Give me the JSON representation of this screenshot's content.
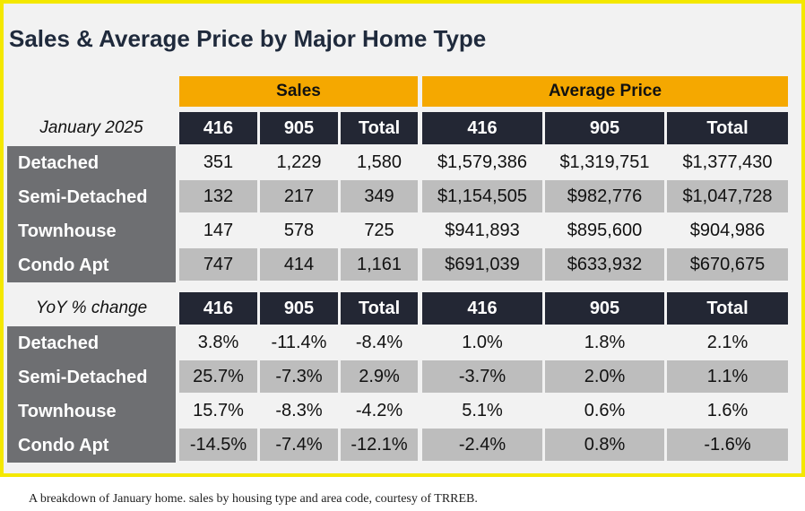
{
  "title": "Sales & Average Price by Major Home Type",
  "groups": {
    "sales": "Sales",
    "avg_price": "Average Price"
  },
  "sections": [
    {
      "caption": "January 2025",
      "columns": [
        "416",
        "905",
        "Total",
        "416",
        "905",
        "Total"
      ],
      "rows": [
        {
          "label": "Detached",
          "values": [
            "351",
            "1,229",
            "1,580",
            "$1,579,386",
            "$1,319,751",
            "$1,377,430"
          ]
        },
        {
          "label": "Semi-Detached",
          "values": [
            "132",
            "217",
            "349",
            "$1,154,505",
            "$982,776",
            "$1,047,728"
          ]
        },
        {
          "label": "Townhouse",
          "values": [
            "147",
            "578",
            "725",
            "$941,893",
            "$895,600",
            "$904,986"
          ]
        },
        {
          "label": "Condo Apt",
          "values": [
            "747",
            "414",
            "1,161",
            "$691,039",
            "$633,932",
            "$670,675"
          ]
        }
      ]
    },
    {
      "caption": "YoY % change",
      "columns": [
        "416",
        "905",
        "Total",
        "416",
        "905",
        "Total"
      ],
      "rows": [
        {
          "label": "Detached",
          "values": [
            "3.8%",
            "-11.4%",
            "-8.4%",
            "1.0%",
            "1.8%",
            "2.1%"
          ]
        },
        {
          "label": "Semi-Detached",
          "values": [
            "25.7%",
            "-7.3%",
            "2.9%",
            "-3.7%",
            "2.0%",
            "1.1%"
          ]
        },
        {
          "label": "Townhouse",
          "values": [
            "15.7%",
            "-8.3%",
            "-4.2%",
            "5.1%",
            "0.6%",
            "1.6%"
          ]
        },
        {
          "label": "Condo Apt",
          "values": [
            "-14.5%",
            "-7.4%",
            "-12.1%",
            "-2.4%",
            "0.8%",
            "-1.6%"
          ]
        }
      ]
    }
  ],
  "footer_caption": "A breakdown of January home. sales by housing type and area code, courtesy of TRREB.",
  "colors": {
    "frame_border": "#f4e800",
    "group_header": "#f5a800",
    "column_header": "#232734",
    "row_label": "#6e6f72",
    "row_alt": "#bdbdbd"
  }
}
